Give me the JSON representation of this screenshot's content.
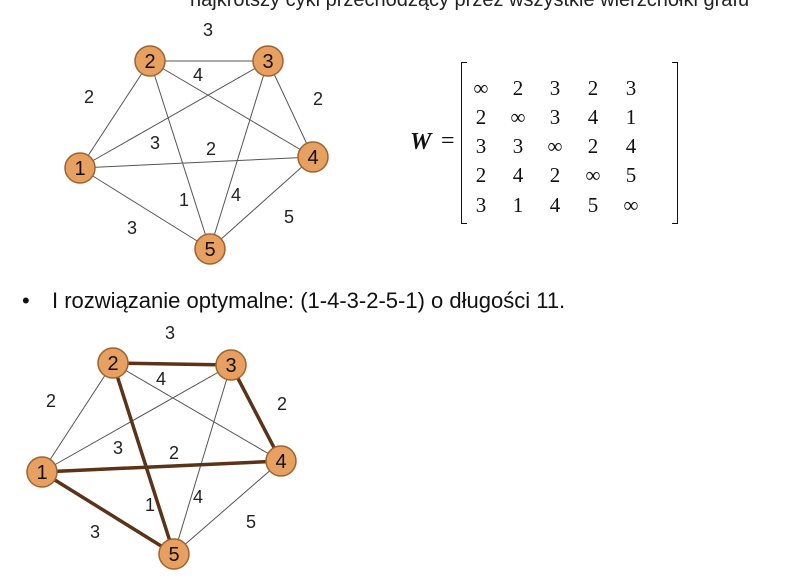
{
  "header_cut_text": "najkrótszy cykl przechodzący przez wszystkie wierzchołki grafu",
  "top_graph": {
    "nodes": [
      "1",
      "2",
      "3",
      "4",
      "5"
    ],
    "edge_weights": {
      "e12": "2",
      "e13": "3",
      "e14": "2",
      "e15": "3",
      "e23": "3",
      "e24": "4",
      "e25": "1",
      "e34": "2",
      "e35": "4",
      "e45": "5"
    }
  },
  "matrix": {
    "label": "W",
    "equals": "=",
    "rows": [
      [
        "∞",
        "2",
        "3",
        "2",
        "3"
      ],
      [
        "2",
        "∞",
        "3",
        "4",
        "1"
      ],
      [
        "3",
        "3",
        "∞",
        "2",
        "4"
      ],
      [
        "2",
        "4",
        "2",
        "∞",
        "5"
      ],
      [
        "3",
        "1",
        "4",
        "5",
        "∞"
      ]
    ]
  },
  "bullet": {
    "marker": "•",
    "text": "I rozwiązanie optymalne: (1-4-3-2-5-1) o długości 11."
  },
  "bottom_graph": {
    "nodes": [
      "1",
      "2",
      "3",
      "4",
      "5"
    ],
    "edge_weights": {
      "e12": "2",
      "e13": "3",
      "e14": "2",
      "e15": "3",
      "e23": "3",
      "e24": "4",
      "e25": "1",
      "e34": "2",
      "e35": "4",
      "e45": "5"
    },
    "tour": "1-4-3-2-5-1",
    "tour_length": "11"
  },
  "colors": {
    "node_fill": "#E8A060",
    "node_stroke": "#A0622E",
    "thin_edge": "#555555",
    "tour_edge": "#5C3317"
  }
}
